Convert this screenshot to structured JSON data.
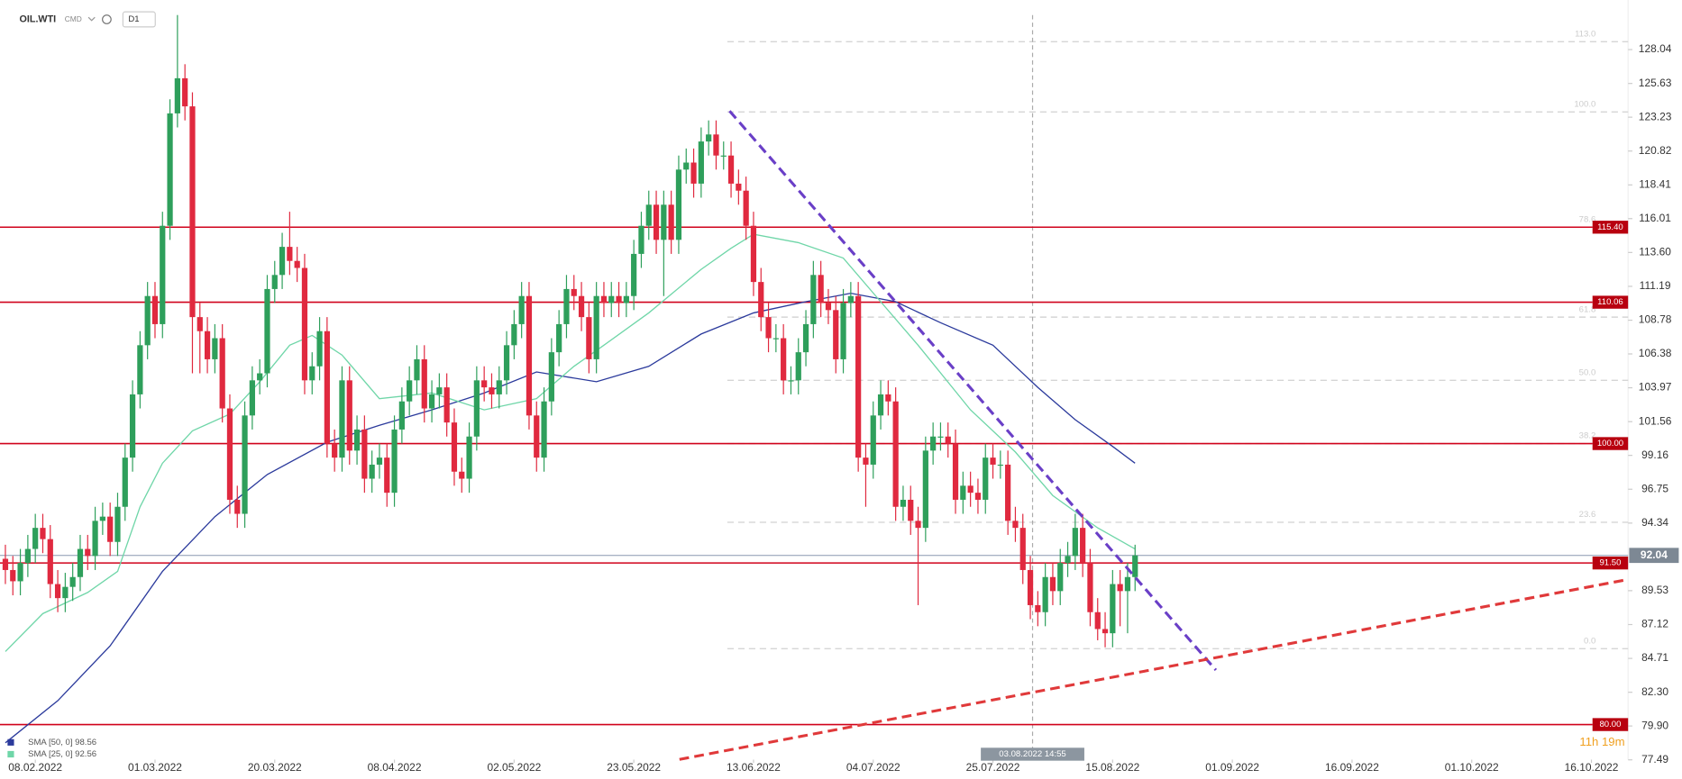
{
  "header": {
    "symbol": "OIL.WTI",
    "market": "CMD",
    "interval": "D1"
  },
  "chart_data": {
    "type": "candlestick",
    "up_color": "#2e9f5b",
    "down_color": "#e0293f",
    "xlim": [
      -0.72,
      216.9
    ],
    "ylim": [
      77.2,
      131.57
    ],
    "xticks": [
      {
        "value": 4,
        "label": "08.02.2022"
      },
      {
        "value": 20,
        "label": "01.03.2022"
      },
      {
        "value": 36,
        "label": "20.03.2022"
      },
      {
        "value": 52,
        "label": "08.04.2022"
      },
      {
        "value": 68,
        "label": "02.05.2022"
      },
      {
        "value": 84,
        "label": "23.05.2022"
      },
      {
        "value": 100,
        "label": "13.06.2022"
      },
      {
        "value": 116,
        "label": "04.07.2022"
      },
      {
        "value": 132,
        "label": "25.07.2022"
      },
      {
        "value": 148,
        "label": "15.08.2022"
      },
      {
        "value": 164,
        "label": "01.09.2022"
      },
      {
        "value": 180,
        "label": "16.09.2022"
      },
      {
        "value": 196,
        "label": "01.10.2022"
      },
      {
        "value": 212,
        "label": "16.10.2022"
      }
    ],
    "yticks": [
      128.04,
      125.63,
      123.23,
      120.82,
      118.41,
      116.01,
      {
        "value": 113.6,
        "label": "113.60"
      },
      111.19,
      108.78,
      106.38,
      103.97,
      101.56,
      99.16,
      96.75,
      94.34,
      89.53,
      87.12,
      84.71,
      {
        "value": 82.3,
        "label": "82.30"
      },
      {
        "value": 79.9,
        "label": "79.90"
      },
      77.49
    ],
    "candles": [
      [
        91.8,
        92.8,
        90.0,
        91.0
      ],
      [
        91.0,
        92.0,
        89.2,
        90.2
      ],
      [
        90.2,
        92.5,
        89.2,
        91.5
      ],
      [
        91.5,
        93.5,
        90.5,
        92.5
      ],
      [
        92.5,
        95.0,
        91.5,
        94.0
      ],
      [
        94.0,
        95.0,
        92.2,
        93.2
      ],
      [
        93.2,
        94.2,
        89.0,
        90.0
      ],
      [
        90.0,
        91.0,
        88.0,
        89.0
      ],
      [
        89.0,
        90.8,
        88.0,
        89.8
      ],
      [
        89.8,
        91.5,
        88.8,
        90.5
      ],
      [
        90.5,
        93.5,
        89.5,
        92.5
      ],
      [
        92.5,
        93.5,
        91.0,
        92.0
      ],
      [
        92.0,
        95.5,
        91.0,
        94.5
      ],
      [
        94.5,
        95.8,
        93.5,
        94.8
      ],
      [
        94.8,
        95.8,
        92.0,
        93.0
      ],
      [
        93.0,
        96.5,
        92.0,
        95.5
      ],
      [
        95.5,
        100.0,
        94.5,
        99.0
      ],
      [
        99.0,
        104.5,
        98.0,
        103.5
      ],
      [
        103.5,
        108.0,
        102.5,
        107.0
      ],
      [
        107.0,
        111.5,
        106.0,
        110.5
      ],
      [
        110.5,
        111.5,
        107.5,
        108.5
      ],
      [
        108.5,
        116.5,
        107.5,
        115.5
      ],
      [
        115.5,
        124.5,
        114.5,
        123.5
      ],
      [
        123.5,
        130.5,
        122.5,
        126.0
      ],
      [
        126.0,
        127.0,
        123.0,
        124.0
      ],
      [
        124.0,
        125.0,
        105.0,
        109.0
      ],
      [
        109.0,
        110.0,
        105.0,
        108.0
      ],
      [
        108.0,
        109.0,
        105.0,
        106.0
      ],
      [
        106.0,
        108.5,
        105.0,
        107.5
      ],
      [
        107.5,
        108.5,
        101.5,
        102.5
      ],
      [
        102.5,
        103.5,
        95.0,
        96.0
      ],
      [
        96.0,
        97.0,
        94.0,
        95.0
      ],
      [
        95.0,
        103.0,
        94.0,
        102.0
      ],
      [
        102.0,
        105.5,
        101.0,
        104.5
      ],
      [
        104.5,
        106.0,
        103.5,
        105.0
      ],
      [
        105.0,
        112.0,
        104.0,
        111.0
      ],
      [
        111.0,
        113.0,
        110.0,
        112.0
      ],
      [
        112.0,
        115.0,
        111.0,
        114.0
      ],
      [
        114.0,
        116.5,
        112.0,
        113.0
      ],
      [
        113.0,
        114.0,
        111.5,
        112.5
      ],
      [
        112.5,
        113.5,
        103.5,
        104.5
      ],
      [
        104.5,
        106.5,
        103.5,
        105.5
      ],
      [
        105.5,
        109.0,
        104.5,
        108.0
      ],
      [
        108.0,
        109.0,
        99.0,
        100.0
      ],
      [
        100.0,
        101.0,
        98.0,
        99.0
      ],
      [
        99.0,
        105.5,
        98.0,
        104.5
      ],
      [
        104.5,
        105.5,
        98.5,
        99.5
      ],
      [
        99.5,
        102.0,
        98.5,
        101.0
      ],
      [
        101.0,
        102.0,
        96.5,
        97.5
      ],
      [
        97.5,
        99.5,
        96.5,
        98.5
      ],
      [
        98.5,
        100.0,
        97.5,
        99.0
      ],
      [
        99.0,
        100.0,
        95.5,
        96.5
      ],
      [
        96.5,
        102.0,
        95.5,
        101.0
      ],
      [
        101.0,
        104.0,
        100.0,
        103.0
      ],
      [
        103.0,
        105.5,
        102.0,
        104.5
      ],
      [
        104.5,
        107.0,
        103.5,
        106.0
      ],
      [
        106.0,
        107.0,
        101.5,
        102.5
      ],
      [
        102.5,
        104.5,
        101.5,
        103.5
      ],
      [
        103.5,
        105.0,
        102.5,
        104.0
      ],
      [
        104.0,
        105.0,
        100.5,
        101.5
      ],
      [
        101.5,
        102.5,
        97.0,
        98.0
      ],
      [
        98.0,
        99.0,
        96.5,
        97.5
      ],
      [
        97.5,
        101.5,
        96.5,
        100.5
      ],
      [
        100.5,
        105.5,
        99.5,
        104.5
      ],
      [
        104.5,
        105.5,
        103.0,
        104.0
      ],
      [
        104.0,
        105.0,
        102.5,
        103.5
      ],
      [
        103.5,
        105.5,
        102.5,
        104.5
      ],
      [
        104.5,
        108.0,
        103.5,
        107.0
      ],
      [
        107.0,
        109.5,
        106.0,
        108.5
      ],
      [
        108.5,
        111.5,
        107.5,
        110.5
      ],
      [
        110.5,
        111.5,
        101.0,
        102.0
      ],
      [
        102.0,
        103.0,
        98.0,
        99.0
      ],
      [
        99.0,
        104.0,
        98.0,
        103.0
      ],
      [
        103.0,
        107.5,
        102.0,
        106.5
      ],
      [
        106.5,
        109.5,
        105.5,
        108.5
      ],
      [
        108.5,
        112.0,
        107.5,
        111.0
      ],
      [
        111.0,
        112.0,
        109.5,
        110.5
      ],
      [
        110.5,
        111.5,
        108.0,
        109.0
      ],
      [
        109.0,
        110.0,
        105.0,
        106.0
      ],
      [
        106.0,
        111.5,
        105.0,
        110.5
      ],
      [
        110.5,
        111.5,
        109.0,
        110.0
      ],
      [
        110.0,
        111.5,
        109.0,
        110.5
      ],
      [
        110.5,
        111.5,
        109.0,
        110.0
      ],
      [
        110.0,
        111.5,
        109.0,
        110.5
      ],
      [
        110.5,
        114.5,
        109.5,
        113.5
      ],
      [
        113.5,
        116.5,
        112.5,
        115.5
      ],
      [
        115.5,
        118.0,
        114.5,
        117.0
      ],
      [
        117.0,
        118.0,
        113.5,
        114.5
      ],
      [
        114.5,
        118.0,
        110.5,
        117.0
      ],
      [
        117.0,
        118.0,
        113.5,
        114.5
      ],
      [
        114.5,
        120.5,
        113.5,
        119.5
      ],
      [
        119.5,
        121.0,
        118.5,
        120.0
      ],
      [
        120.0,
        121.0,
        117.5,
        118.5
      ],
      [
        118.5,
        122.5,
        117.5,
        121.5
      ],
      [
        121.5,
        123.0,
        120.5,
        122.0
      ],
      [
        122.0,
        123.0,
        119.5,
        120.5
      ],
      [
        120.5,
        121.5,
        119.5,
        120.5
      ],
      [
        120.5,
        121.5,
        117.5,
        118.5
      ],
      [
        118.5,
        119.5,
        117.0,
        118.0
      ],
      [
        118.0,
        119.0,
        114.5,
        115.5
      ],
      [
        115.5,
        116.5,
        110.5,
        111.5
      ],
      [
        111.5,
        112.5,
        108.0,
        109.0
      ],
      [
        109.0,
        110.0,
        106.5,
        107.5
      ],
      [
        107.5,
        108.5,
        106.5,
        107.5
      ],
      [
        107.5,
        108.5,
        103.5,
        104.5
      ],
      [
        104.5,
        105.5,
        103.5,
        104.5
      ],
      [
        104.5,
        107.5,
        103.5,
        106.5
      ],
      [
        106.5,
        109.5,
        105.5,
        108.5
      ],
      [
        108.5,
        113.0,
        107.5,
        112.0
      ],
      [
        112.0,
        113.0,
        109.0,
        110.0
      ],
      [
        110.0,
        111.0,
        108.5,
        109.5
      ],
      [
        109.5,
        110.5,
        105.0,
        106.0
      ],
      [
        106.0,
        111.0,
        105.0,
        110.0
      ],
      [
        110.0,
        111.5,
        109.0,
        110.5
      ],
      [
        110.5,
        111.5,
        98.0,
        99.0
      ],
      [
        99.0,
        100.0,
        95.5,
        98.5
      ],
      [
        98.5,
        103.0,
        97.5,
        102.0
      ],
      [
        102.0,
        104.5,
        101.0,
        103.5
      ],
      [
        103.5,
        104.5,
        102.0,
        103.0
      ],
      [
        103.0,
        104.0,
        94.5,
        95.5
      ],
      [
        95.5,
        97.0,
        94.5,
        96.0
      ],
      [
        96.0,
        97.0,
        93.5,
        94.5
      ],
      [
        94.5,
        95.5,
        88.5,
        94.0
      ],
      [
        94.0,
        100.5,
        93.0,
        99.5
      ],
      [
        99.5,
        101.5,
        98.5,
        100.5
      ],
      [
        100.5,
        101.5,
        99.5,
        100.5
      ],
      [
        100.5,
        101.5,
        99.0,
        100.0
      ],
      [
        100.0,
        101.0,
        95.0,
        96.0
      ],
      [
        96.0,
        98.0,
        95.0,
        97.0
      ],
      [
        97.0,
        98.0,
        95.5,
        96.5
      ],
      [
        96.5,
        97.5,
        95.0,
        96.0
      ],
      [
        96.0,
        100.0,
        95.0,
        99.0
      ],
      [
        99.0,
        100.0,
        97.5,
        98.5
      ],
      [
        98.5,
        99.5,
        97.5,
        98.5
      ],
      [
        98.5,
        99.5,
        93.5,
        94.5
      ],
      [
        94.5,
        95.5,
        93.0,
        94.0
      ],
      [
        94.0,
        95.0,
        90.0,
        91.0
      ],
      [
        91.0,
        92.0,
        87.5,
        88.5
      ],
      [
        88.5,
        89.5,
        87.0,
        88.0
      ],
      [
        88.0,
        91.5,
        87.0,
        90.5
      ],
      [
        90.5,
        91.5,
        88.5,
        89.5
      ],
      [
        89.5,
        92.5,
        88.5,
        91.5
      ],
      [
        91.5,
        93.0,
        90.5,
        92.0
      ],
      [
        92.0,
        95.0,
        91.0,
        94.0
      ],
      [
        94.0,
        95.0,
        90.5,
        91.5
      ],
      [
        91.5,
        92.5,
        87.0,
        88.0
      ],
      [
        88.0,
        89.0,
        86.0,
        86.8
      ],
      [
        86.8,
        88.0,
        85.5,
        86.5
      ],
      [
        86.5,
        91.0,
        85.5,
        90.0
      ],
      [
        90.0,
        91.0,
        87.0,
        89.5
      ],
      [
        89.5,
        91.5,
        86.5,
        90.5
      ],
      [
        90.5,
        92.8,
        89.5,
        92.04
      ]
    ],
    "series": [
      {
        "name": "SMA [50, 0] 98.56",
        "color": "#2b3a9c",
        "x": [
          0,
          7,
          14,
          21,
          28,
          35,
          43,
          50,
          57,
          64,
          71,
          79,
          86,
          93,
          100,
          107,
          113,
          119,
          125,
          132,
          138,
          143,
          148,
          151
        ],
        "values": [
          78.7,
          81.7,
          85.6,
          90.9,
          94.8,
          97.8,
          100.1,
          101.3,
          102.4,
          103.6,
          105.1,
          104.4,
          105.5,
          107.8,
          109.3,
          110.1,
          110.7,
          110.1,
          108.6,
          107.0,
          104.0,
          101.7,
          99.8,
          98.6
        ]
      },
      {
        "name": "SMA [25, 0] 92.56",
        "color": "#6fd6a8",
        "x": [
          0,
          5,
          11,
          15,
          18,
          21,
          25,
          30,
          34,
          38,
          41,
          45,
          50,
          57,
          64,
          71,
          76,
          80,
          86,
          93,
          97,
          100,
          106,
          112,
          117,
          122,
          129,
          135,
          140,
          146,
          151
        ],
        "values": [
          85.2,
          87.9,
          89.4,
          90.9,
          95.5,
          98.6,
          100.9,
          102.1,
          104.4,
          107.0,
          107.7,
          106.3,
          103.2,
          103.6,
          102.4,
          103.2,
          105.5,
          107.0,
          109.3,
          112.4,
          113.9,
          114.9,
          114.3,
          113.2,
          110.1,
          107.0,
          102.4,
          99.4,
          96.3,
          94.0,
          92.5
        ]
      }
    ],
    "hlines": [
      {
        "value": 115.4,
        "label": "115.40"
      },
      {
        "value": 110.06,
        "label": "110.06"
      },
      {
        "value": 100,
        "label": "100.00"
      },
      {
        "value": 91.5,
        "label": "91.50"
      },
      {
        "value": 80,
        "label": "80.00"
      }
    ],
    "last_price": {
      "value": 92.04,
      "label": "92.04"
    },
    "fib_start": 96.5,
    "fib_levels": [
      {
        "label": "113.0",
        "price": 128.6
      },
      {
        "label": "100.0",
        "price": 123.6
      },
      {
        "label": "78.6",
        "price": 115.4
      },
      {
        "label": "61.8",
        "price": 109.0
      },
      {
        "label": "50.0",
        "price": 104.5
      },
      {
        "label": "38.2",
        "price": 100.0
      },
      {
        "label": "23.6",
        "price": 94.4
      },
      {
        "label": "0.0",
        "price": 85.4
      }
    ],
    "trendlines": [
      {
        "color": "#6a3fc7",
        "x": [
          96.8,
          161.8
        ],
        "y": [
          123.67,
          83.88
        ]
      },
      {
        "color": "#e0393a",
        "x": [
          90.1,
          216.9
        ],
        "y": [
          77.52,
          90.33
        ]
      }
    ],
    "crosshair": {
      "x": 137.3,
      "label": "03.08.2022 14:55"
    },
    "timer": "11h 19m"
  }
}
